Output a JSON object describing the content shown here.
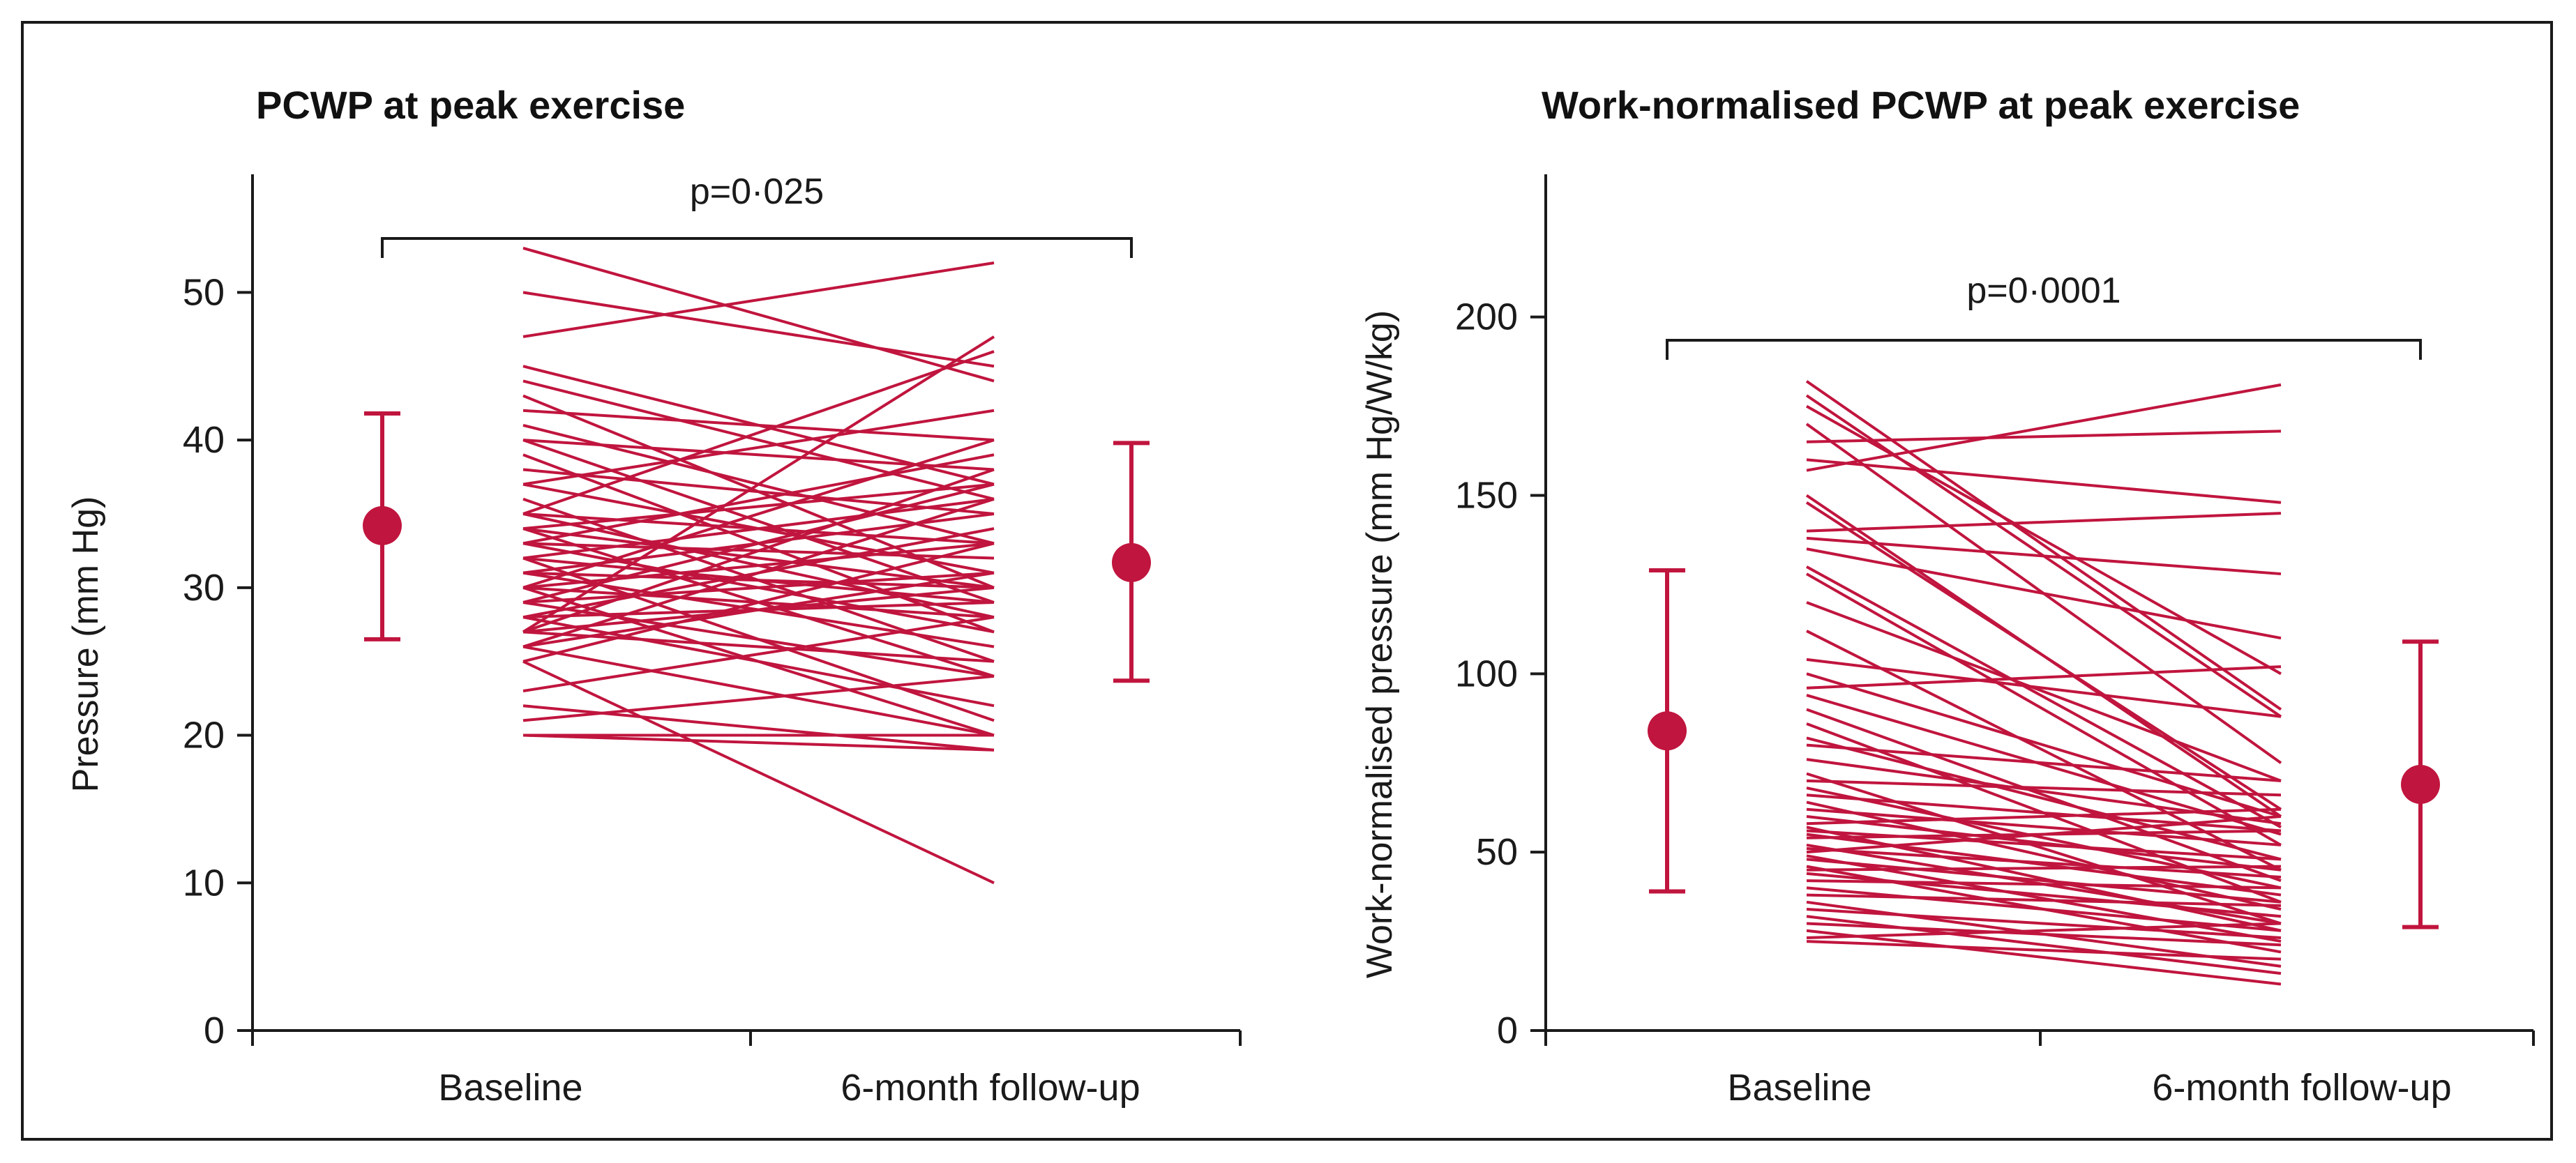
{
  "colors": {
    "accent": "#c0153e",
    "axis": "#1a1a1a"
  },
  "chart_data": [
    {
      "type": "line",
      "title": "PCWP at peak exercise",
      "ylabel": "Pressure (mm Hg)",
      "categories": [
        "Baseline",
        "6-month follow-up"
      ],
      "ylim": [
        0,
        58
      ],
      "yticks": [
        0,
        10,
        20,
        30,
        40,
        50
      ],
      "yticklabels": [
        "0",
        "10",
        "20",
        "30",
        "40",
        "50"
      ],
      "p_value": "p=0·025",
      "summary": [
        {
          "name": "Baseline",
          "mean": 34.2,
          "low": 26.5,
          "high": 41.8
        },
        {
          "name": "6-month follow-up",
          "mean": 31.7,
          "low": 23.7,
          "high": 39.8
        }
      ],
      "pairs": [
        [
          53,
          44
        ],
        [
          50,
          45
        ],
        [
          47,
          52
        ],
        [
          45,
          37
        ],
        [
          44,
          36
        ],
        [
          43,
          30
        ],
        [
          42,
          40
        ],
        [
          41,
          33
        ],
        [
          40,
          38
        ],
        [
          40,
          29
        ],
        [
          39,
          27
        ],
        [
          38,
          35
        ],
        [
          37,
          42
        ],
        [
          37,
          31
        ],
        [
          36,
          25
        ],
        [
          35,
          46
        ],
        [
          35,
          33
        ],
        [
          35,
          28
        ],
        [
          34,
          37
        ],
        [
          34,
          30
        ],
        [
          34,
          24
        ],
        [
          33,
          39
        ],
        [
          33,
          32
        ],
        [
          33,
          27
        ],
        [
          32,
          36
        ],
        [
          32,
          29
        ],
        [
          32,
          21
        ],
        [
          31,
          35
        ],
        [
          31,
          30
        ],
        [
          31,
          26
        ],
        [
          30,
          40
        ],
        [
          30,
          33
        ],
        [
          30,
          28
        ],
        [
          30,
          20
        ],
        [
          29,
          37
        ],
        [
          29,
          31
        ],
        [
          29,
          24
        ],
        [
          28,
          34
        ],
        [
          28,
          29
        ],
        [
          28,
          22
        ],
        [
          27,
          47
        ],
        [
          27,
          38
        ],
        [
          27,
          30
        ],
        [
          27,
          25
        ],
        [
          26,
          36
        ],
        [
          26,
          31
        ],
        [
          26,
          20
        ],
        [
          25,
          33
        ],
        [
          25,
          10
        ],
        [
          23,
          28
        ],
        [
          22,
          19
        ],
        [
          21,
          24
        ],
        [
          20,
          20
        ],
        [
          20,
          19
        ]
      ]
    },
    {
      "type": "line",
      "title": "Work-normalised PCWP at peak exercise",
      "ylabel": "Work-normalised pressure (mm Hg/W/kg)",
      "categories": [
        "Baseline",
        "6-month follow-up"
      ],
      "ylim": [
        0,
        240
      ],
      "yticks": [
        0,
        50,
        100,
        150,
        200
      ],
      "yticklabels": [
        "0",
        "50",
        "100",
        "150",
        "200"
      ],
      "p_value": "p=0·0001",
      "summary": [
        {
          "name": "Baseline",
          "mean": 84,
          "low": 39,
          "high": 129
        },
        {
          "name": "6-month follow-up",
          "mean": 69,
          "low": 29,
          "high": 109
        }
      ],
      "pairs": [
        [
          182,
          90
        ],
        [
          178,
          88
        ],
        [
          175,
          100
        ],
        [
          170,
          75
        ],
        [
          165,
          168
        ],
        [
          160,
          148
        ],
        [
          157,
          181
        ],
        [
          150,
          60
        ],
        [
          148,
          62
        ],
        [
          140,
          145
        ],
        [
          138,
          128
        ],
        [
          135,
          110
        ],
        [
          130,
          57
        ],
        [
          128,
          52
        ],
        [
          120,
          70
        ],
        [
          112,
          45
        ],
        [
          104,
          88
        ],
        [
          100,
          60
        ],
        [
          96,
          102
        ],
        [
          94,
          55
        ],
        [
          90,
          42
        ],
        [
          86,
          36
        ],
        [
          82,
          48
        ],
        [
          80,
          70
        ],
        [
          76,
          58
        ],
        [
          72,
          30
        ],
        [
          70,
          66
        ],
        [
          68,
          40
        ],
        [
          66,
          56
        ],
        [
          64,
          34
        ],
        [
          62,
          52
        ],
        [
          60,
          45
        ],
        [
          58,
          62
        ],
        [
          57,
          28
        ],
        [
          56,
          48
        ],
        [
          55,
          38
        ],
        [
          54,
          56
        ],
        [
          52,
          30
        ],
        [
          51,
          43
        ],
        [
          50,
          60
        ],
        [
          49,
          25
        ],
        [
          48,
          36
        ],
        [
          46,
          22
        ],
        [
          45,
          46
        ],
        [
          44,
          32
        ],
        [
          42,
          40
        ],
        [
          40,
          28
        ],
        [
          38,
          35
        ],
        [
          36,
          18
        ],
        [
          34,
          26
        ],
        [
          32,
          16
        ],
        [
          30,
          24
        ],
        [
          28,
          13
        ],
        [
          26,
          30
        ],
        [
          25,
          20
        ]
      ]
    }
  ]
}
